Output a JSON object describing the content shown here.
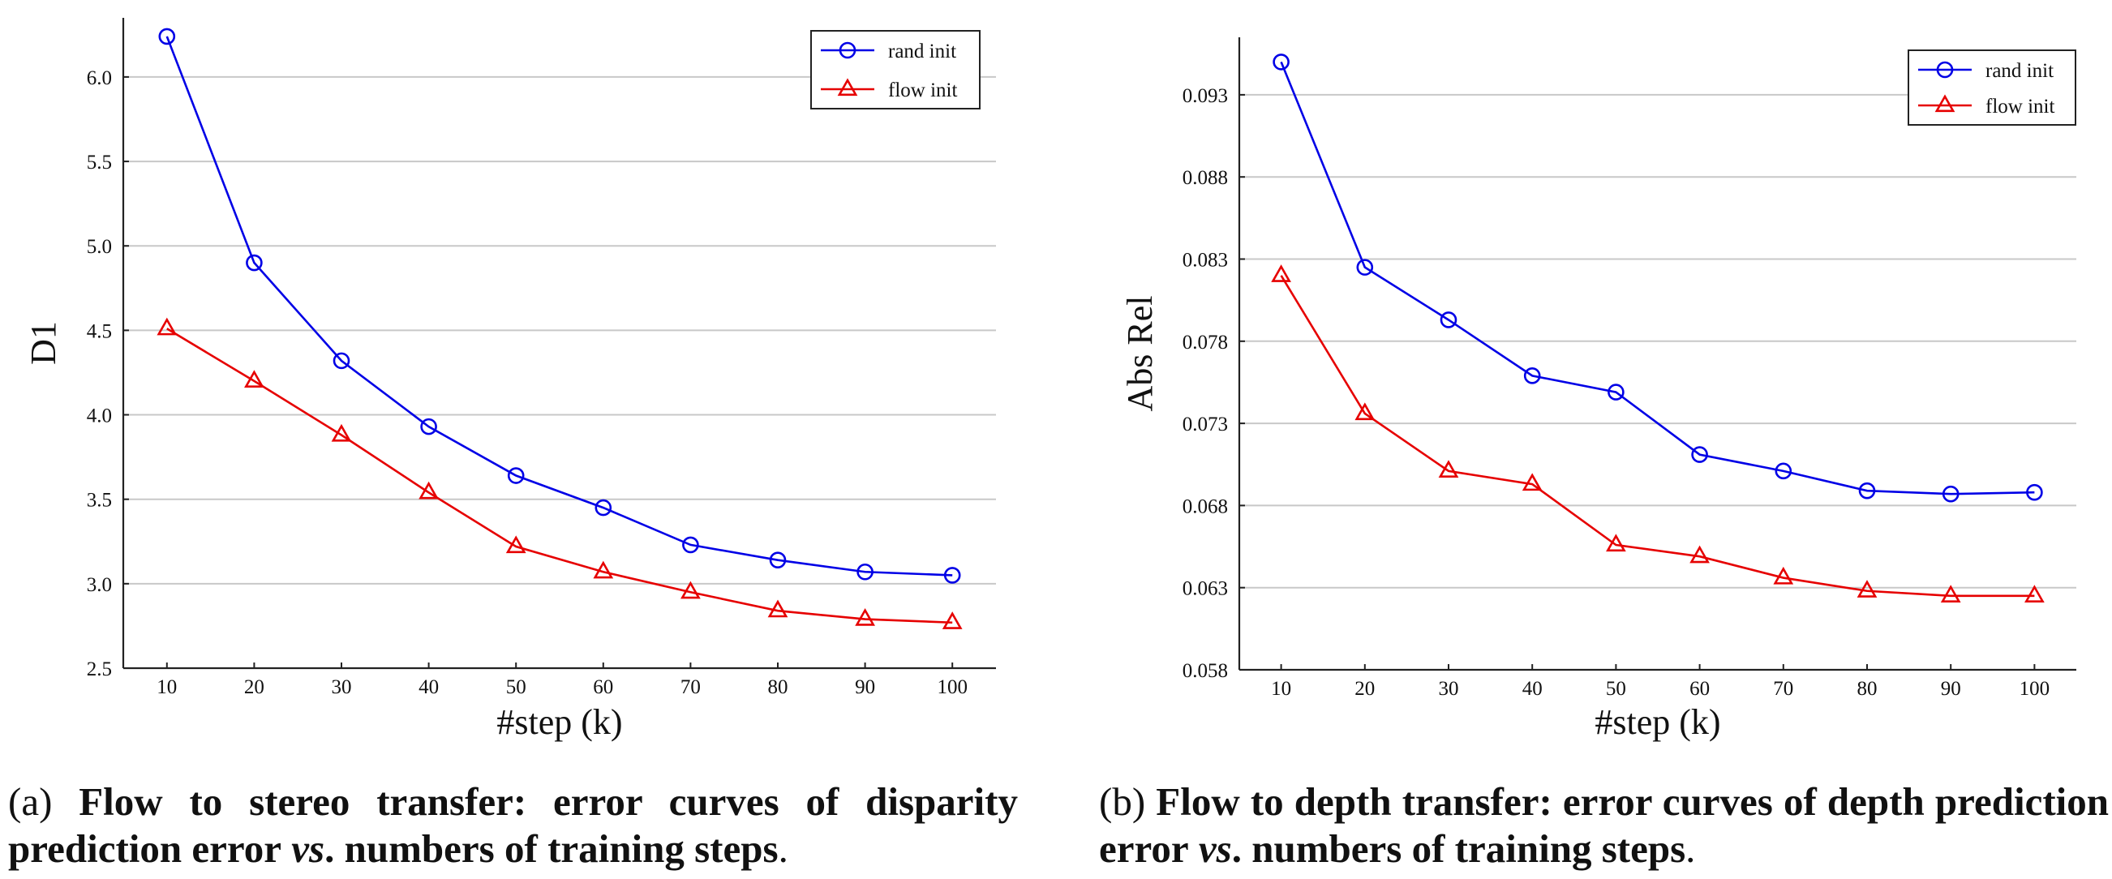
{
  "chart_data": [
    {
      "type": "line",
      "title": "",
      "xlabel": "#step (k)",
      "ylabel": "D1",
      "x": [
        10,
        20,
        30,
        40,
        50,
        60,
        70,
        80,
        90,
        100
      ],
      "xlim": [
        5,
        105
      ],
      "ylim": [
        2.5,
        6.35
      ],
      "yticks": [
        2.5,
        3.0,
        3.5,
        4.0,
        4.5,
        5.0,
        5.5,
        6.0
      ],
      "ytick_labels": [
        "2.5",
        "3.0",
        "3.5",
        "4.0",
        "4.5",
        "5.0",
        "5.5",
        "6.0"
      ],
      "grid": "horizontal",
      "legend_position": "top-right",
      "series": [
        {
          "name": "rand init",
          "color": "#0000e6",
          "marker": "circle",
          "values": [
            6.24,
            4.9,
            4.32,
            3.93,
            3.64,
            3.45,
            3.23,
            3.14,
            3.07,
            3.05
          ]
        },
        {
          "name": "flow init",
          "color": "#e60000",
          "marker": "triangle",
          "values": [
            4.51,
            4.2,
            3.88,
            3.54,
            3.22,
            3.07,
            2.95,
            2.84,
            2.79,
            2.77
          ]
        }
      ]
    },
    {
      "type": "line",
      "title": "",
      "xlabel": "#step (k)",
      "ylabel": "Abs Rel",
      "x": [
        10,
        20,
        30,
        40,
        50,
        60,
        70,
        80,
        90,
        100
      ],
      "xlim": [
        5,
        105
      ],
      "ylim": [
        0.058,
        0.0965
      ],
      "yticks": [
        0.058,
        0.063,
        0.068,
        0.073,
        0.078,
        0.083,
        0.088,
        0.093
      ],
      "ytick_labels": [
        "0.058",
        "0.063",
        "0.068",
        "0.073",
        "0.078",
        "0.083",
        "0.088",
        "0.093"
      ],
      "grid": "horizontal",
      "legend_position": "top-right",
      "series": [
        {
          "name": "rand init",
          "color": "#0000e6",
          "marker": "circle",
          "values": [
            0.095,
            0.0825,
            0.0793,
            0.0759,
            0.0749,
            0.0711,
            0.0701,
            0.0689,
            0.0687,
            0.0688
          ]
        },
        {
          "name": "flow init",
          "color": "#e60000",
          "marker": "triangle",
          "values": [
            0.082,
            0.0736,
            0.0701,
            0.0693,
            0.0656,
            0.0649,
            0.0636,
            0.0628,
            0.0625,
            0.0625
          ]
        }
      ]
    }
  ],
  "captions": [
    {
      "tag": "(a)",
      "bold_1": "Flow to stereo transfer: error curves of disparity prediction error",
      "italic": "vs",
      "bold_2": ". numbers of training steps",
      "end": "."
    },
    {
      "tag": "(b)",
      "bold_1": "Flow to depth transfer: error curves of depth prediction error",
      "italic": "vs",
      "bold_2": ". numbers of training steps",
      "end": "."
    }
  ]
}
